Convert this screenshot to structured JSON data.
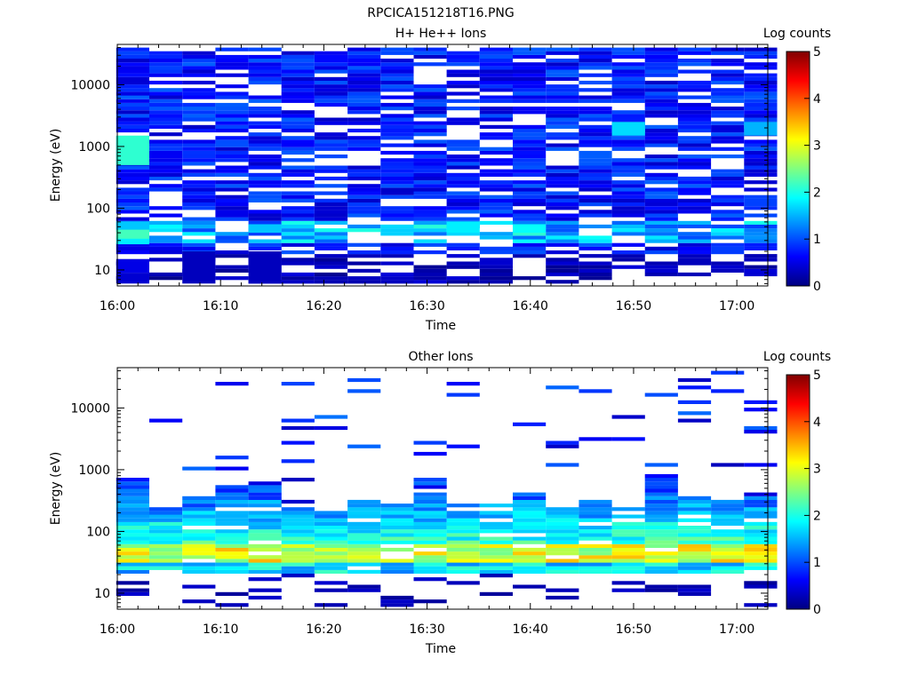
{
  "figure": {
    "title": "RPCICA151218T16.PNG"
  },
  "colormap": [
    "#000080",
    "#0000ff",
    "#0080ff",
    "#00ffff",
    "#80ff80",
    "#ffff00",
    "#ff8000",
    "#ff0000",
    "#800000"
  ],
  "chart_data": [
    {
      "type": "heatmap",
      "title": "H+ He++ Ions",
      "xlabel": "Time",
      "ylabel": "Energy (eV)",
      "yscale": "log",
      "ylim": [
        5.5,
        45000
      ],
      "xlim": [
        "16:00",
        "17:03"
      ],
      "x_ticks": [
        "16:00",
        "16:10",
        "16:20",
        "16:30",
        "16:40",
        "16:50",
        "17:00"
      ],
      "y_ticks": [
        "10",
        "100",
        "1000",
        "10000"
      ],
      "colorbar": {
        "label": "Log counts",
        "range": [
          0,
          5
        ],
        "ticks": [
          "0",
          "1",
          "2",
          "3",
          "4",
          "5"
        ]
      },
      "time_columns": [
        "16:01.5",
        "16:04.7",
        "16:07.9",
        "16:11.1",
        "16:14.3",
        "16:17.5",
        "16:20.7",
        "16:23.9",
        "16:27.1",
        "16:30.3",
        "16:33.5",
        "16:36.7",
        "16:39.9",
        "16:43.1",
        "16:46.3",
        "16:49.5",
        "16:52.7",
        "16:55.9",
        "16:59.1",
        "17:02.3"
      ],
      "energy_range_eV": [
        6,
        40000
      ],
      "energy_channels": 64,
      "cells": [
        {
          "t": 0,
          "e_lo": 6,
          "e_hi": 9,
          "v": 0.4
        },
        {
          "t": 0,
          "e_lo": 9,
          "e_hi": 15,
          "v": 0.5
        },
        {
          "t": 0,
          "e_lo": 26,
          "e_hi": 32,
          "v": 1.8
        },
        {
          "t": 0,
          "e_lo": 32,
          "e_hi": 45,
          "v": 2.2
        },
        {
          "t": 0,
          "e_lo": 45,
          "e_hi": 60,
          "v": 1.6
        },
        {
          "t": 0,
          "e_lo": 500,
          "e_hi": 1500,
          "v": 2.1
        },
        {
          "t": 2,
          "e_lo": 6,
          "e_hi": 20,
          "v": 0.3
        },
        {
          "t": 4,
          "e_lo": 6,
          "e_hi": 20,
          "v": 0.3
        },
        {
          "t": 4,
          "e_lo": 40,
          "e_hi": 55,
          "v": 1.6
        },
        {
          "t": 10,
          "e_lo": 40,
          "e_hi": 60,
          "v": 1.8
        },
        {
          "t": 12,
          "e_lo": 40,
          "e_hi": 55,
          "v": 1.9
        },
        {
          "t": 15,
          "e_lo": 1500,
          "e_hi": 2500,
          "v": 1.7
        },
        {
          "t": 19,
          "e_lo": 1500,
          "e_hi": 2500,
          "v": 1.5
        }
      ]
    },
    {
      "type": "heatmap",
      "title": "Other Ions",
      "xlabel": "Time",
      "ylabel": "Energy (eV)",
      "yscale": "log",
      "ylim": [
        5.5,
        45000
      ],
      "xlim": [
        "16:00",
        "17:03"
      ],
      "x_ticks": [
        "16:00",
        "16:10",
        "16:20",
        "16:30",
        "16:40",
        "16:50",
        "17:00"
      ],
      "y_ticks": [
        "10",
        "100",
        "1000",
        "10000"
      ],
      "colorbar": {
        "label": "Log counts",
        "range": [
          0,
          5
        ],
        "ticks": [
          "0",
          "1",
          "2",
          "3",
          "4",
          "5"
        ]
      },
      "time_columns": [
        "16:01.5",
        "16:04.7",
        "16:07.9",
        "16:11.1",
        "16:14.3",
        "16:17.5",
        "16:20.7",
        "16:23.9",
        "16:27.1",
        "16:30.3",
        "16:33.5",
        "16:36.7",
        "16:39.9",
        "16:43.1",
        "16:46.3",
        "16:49.5",
        "16:52.7",
        "16:55.9",
        "16:59.1",
        "17:02.3"
      ],
      "energy_range_eV": [
        6,
        40000
      ],
      "energy_channels": 64,
      "peak_band_eV": [
        30,
        60
      ],
      "peak_log_counts": 3.5,
      "upper_limit_by_column_eV": [
        700,
        260,
        350,
        550,
        650,
        230,
        220,
        330,
        300,
        700,
        270,
        300,
        500,
        260,
        320,
        230,
        700,
        350,
        320,
        380
      ]
    }
  ]
}
